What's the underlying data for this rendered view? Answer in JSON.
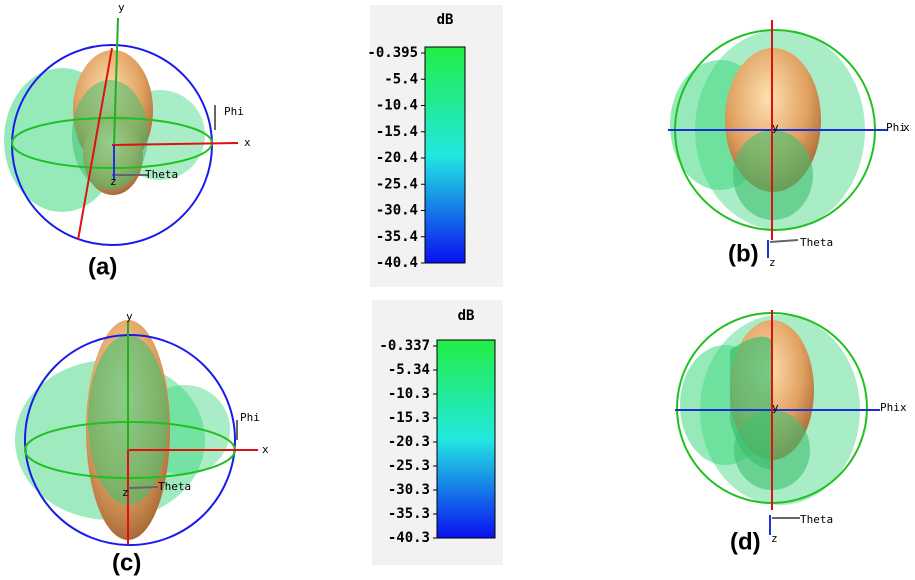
{
  "panels": [
    {
      "label": "(a)",
      "axes": {
        "x": "x",
        "y": "y",
        "z": "z",
        "phi": "Phi",
        "theta": "Theta"
      }
    },
    {
      "label": "(b)",
      "axes": {
        "x": "x",
        "y": "y",
        "z": "z",
        "phi": "Phi",
        "theta": "Theta"
      }
    },
    {
      "label": "(c)",
      "axes": {
        "x": "x",
        "y": "y",
        "z": "z",
        "phi": "Phi",
        "theta": "Theta"
      }
    },
    {
      "label": "(d)",
      "axes": {
        "x": "x",
        "y": "y",
        "z": "z",
        "phi": "Phi",
        "theta": "Theta"
      }
    }
  ],
  "colorbars": [
    {
      "unit": "dB",
      "ticks": [
        "-0.395",
        "-5.4",
        "-10.4",
        "-15.4",
        "-20.4",
        "-25.4",
        "-30.4",
        "-35.4",
        "-40.4"
      ]
    },
    {
      "unit": "dB",
      "ticks": [
        "-0.337",
        "-5.34",
        "-10.3",
        "-15.3",
        "-20.3",
        "-25.3",
        "-30.3",
        "-35.3",
        "-40.3"
      ]
    }
  ]
}
